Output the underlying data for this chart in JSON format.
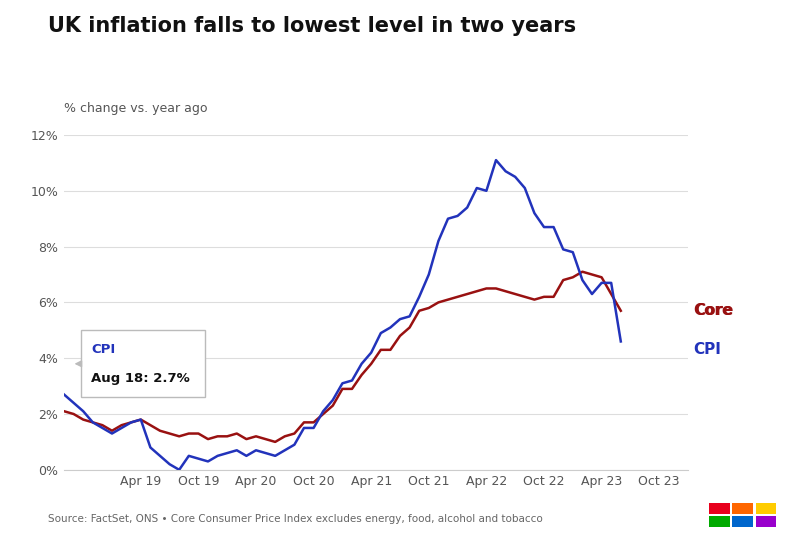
{
  "title": "UK inflation falls to lowest level in two years",
  "ylabel": "% change vs. year ago",
  "source": "Source: FactSet, ONS • Core Consumer Price Index excludes energy, food, alcohol and tobacco",
  "background_color": "#ffffff",
  "cpi_color": "#2233bb",
  "core_color": "#991111",
  "ylim": [
    0,
    12
  ],
  "yticks": [
    0,
    2,
    4,
    6,
    8,
    10,
    12
  ],
  "ytick_labels": [
    "0%",
    "2%",
    "4%",
    "6%",
    "8%",
    "10%",
    "12%"
  ],
  "tooltip_label": "CPI",
  "tooltip_date": "Aug 18:",
  "tooltip_value": "2.7%",
  "x_tick_labels": [
    "Apr 19",
    "Oct 19",
    "Apr 20",
    "Oct 20",
    "Apr 21",
    "Oct 21",
    "Apr 22",
    "Oct 22",
    "Apr 23",
    "Oct 23"
  ],
  "x_tick_positions": [
    8,
    14,
    20,
    26,
    32,
    38,
    44,
    50,
    56,
    62
  ],
  "xlim": [
    0,
    65
  ],
  "cpi_data": [
    2.7,
    2.4,
    2.1,
    1.7,
    1.5,
    1.3,
    1.5,
    1.7,
    1.8,
    0.8,
    0.5,
    0.2,
    0.0,
    0.5,
    0.4,
    0.3,
    0.5,
    0.6,
    0.7,
    0.5,
    0.7,
    0.6,
    0.5,
    0.7,
    0.9,
    1.5,
    1.5,
    2.1,
    2.5,
    3.1,
    3.2,
    3.8,
    4.2,
    4.9,
    5.1,
    5.4,
    5.5,
    6.2,
    7.0,
    8.2,
    9.0,
    9.1,
    9.4,
    10.1,
    10.0,
    11.1,
    10.7,
    10.5,
    10.1,
    9.2,
    8.7,
    8.7,
    7.9,
    7.8,
    6.8,
    6.3,
    6.7,
    6.7,
    4.6
  ],
  "core_data": [
    2.1,
    2.0,
    1.8,
    1.7,
    1.6,
    1.4,
    1.6,
    1.7,
    1.8,
    1.6,
    1.4,
    1.3,
    1.2,
    1.3,
    1.3,
    1.1,
    1.2,
    1.2,
    1.3,
    1.1,
    1.2,
    1.1,
    1.0,
    1.2,
    1.3,
    1.7,
    1.7,
    2.0,
    2.3,
    2.9,
    2.9,
    3.4,
    3.8,
    4.3,
    4.3,
    4.8,
    5.1,
    5.7,
    5.8,
    6.0,
    6.1,
    6.2,
    6.3,
    6.4,
    6.5,
    6.5,
    6.4,
    6.3,
    6.2,
    6.1,
    6.2,
    6.2,
    6.8,
    6.9,
    7.1,
    7.0,
    6.9,
    6.3,
    5.7
  ]
}
